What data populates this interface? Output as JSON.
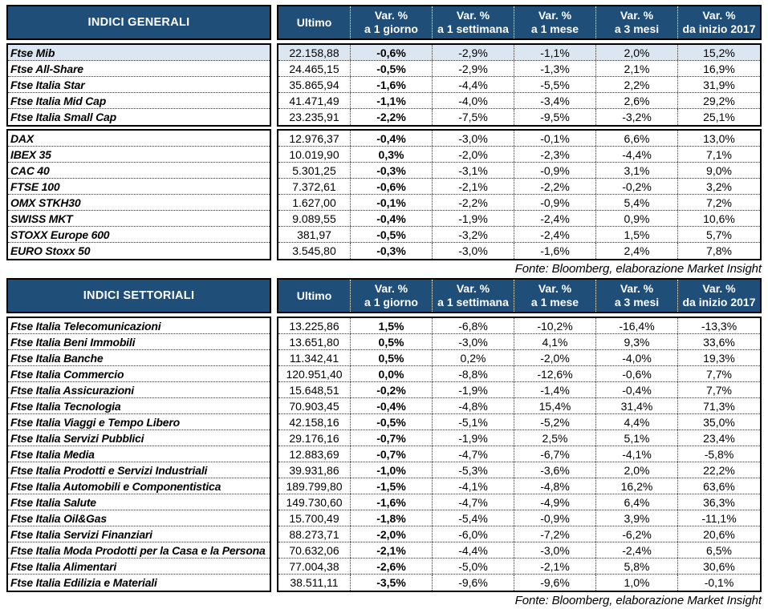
{
  "colors": {
    "header_bg": "#1F4E79",
    "header_text": "#FFFFFF",
    "highlight_row_bg": "#DCE6F1",
    "grid_border": "#000000"
  },
  "tables": [
    {
      "title": "INDICI GENERALI",
      "columns": [
        {
          "line1": "Ultimo",
          "line2": ""
        },
        {
          "line1": "Var. %",
          "line2": "a 1 giorno"
        },
        {
          "line1": "Var. %",
          "line2": "a 1 settimana"
        },
        {
          "line1": "Var. %",
          "line2": "a 1 mese"
        },
        {
          "line1": "Var. %",
          "line2": "a 3 mesi"
        },
        {
          "line1": "Var. %",
          "line2": "da inizio 2017"
        }
      ],
      "groups": [
        {
          "rows": [
            {
              "name": "Ftse Mib",
              "highlight": true,
              "values": [
                "22.158,88",
                "-0,6%",
                "-2,9%",
                "-1,1%",
                "2,0%",
                "15,2%"
              ]
            },
            {
              "name": "Ftse All-Share",
              "values": [
                "24.465,15",
                "-0,5%",
                "-2,9%",
                "-1,3%",
                "2,1%",
                "16,9%"
              ]
            },
            {
              "name": "Ftse Italia Star",
              "values": [
                "35.865,94",
                "-1,6%",
                "-4,4%",
                "-5,5%",
                "2,2%",
                "31,9%"
              ]
            },
            {
              "name": "Ftse Italia Mid Cap",
              "values": [
                "41.471,49",
                "-1,1%",
                "-4,0%",
                "-3,4%",
                "2,6%",
                "29,2%"
              ]
            },
            {
              "name": "Ftse Italia Small Cap",
              "values": [
                "23.235,91",
                "-2,2%",
                "-7,5%",
                "-9,5%",
                "-3,2%",
                "25,1%"
              ]
            }
          ]
        },
        {
          "rows": [
            {
              "name": "DAX",
              "values": [
                "12.976,37",
                "-0,4%",
                "-3,0%",
                "-0,1%",
                "6,6%",
                "13,0%"
              ]
            },
            {
              "name": "IBEX 35",
              "values": [
                "10.019,90",
                "0,3%",
                "-2,0%",
                "-2,3%",
                "-4,4%",
                "7,1%"
              ]
            },
            {
              "name": "CAC 40",
              "values": [
                "5.301,25",
                "-0,3%",
                "-3,1%",
                "-0,9%",
                "3,1%",
                "9,0%"
              ]
            },
            {
              "name": "FTSE 100",
              "values": [
                "7.372,61",
                "-0,6%",
                "-2,1%",
                "-2,2%",
                "-0,2%",
                "3,2%"
              ]
            },
            {
              "name": "OMX STKH30",
              "values": [
                "1.627,00",
                "-0,1%",
                "-2,2%",
                "-0,9%",
                "5,4%",
                "7,2%"
              ]
            },
            {
              "name": "SWISS MKT",
              "values": [
                "9.089,55",
                "-0,4%",
                "-1,9%",
                "-2,4%",
                "0,9%",
                "10,6%"
              ]
            },
            {
              "name": "STOXX Europe 600",
              "values": [
                "381,97",
                "-0,5%",
                "-3,2%",
                "-2,4%",
                "1,5%",
                "5,7%"
              ]
            },
            {
              "name": "EURO Stoxx 50",
              "values": [
                "3.545,80",
                "-0,3%",
                "-3,0%",
                "-1,6%",
                "2,4%",
                "7,8%"
              ]
            }
          ]
        }
      ],
      "source": "Fonte: Bloomberg, elaborazione Market Insight"
    },
    {
      "title": "INDICI SETTORIALI",
      "columns": [
        {
          "line1": "Ultimo",
          "line2": ""
        },
        {
          "line1": "Var. %",
          "line2": "a 1 giorno"
        },
        {
          "line1": "Var. %",
          "line2": "a 1 settimana"
        },
        {
          "line1": "Var. %",
          "line2": "a 1 mese"
        },
        {
          "line1": "Var. %",
          "line2": "a 3 mesi"
        },
        {
          "line1": "Var. %",
          "line2": "da inizio 2017"
        }
      ],
      "groups": [
        {
          "rows": [
            {
              "name": "Ftse Italia Telecomunicazioni",
              "values": [
                "13.225,86",
                "1,5%",
                "-6,8%",
                "-10,2%",
                "-16,4%",
                "-13,3%"
              ]
            },
            {
              "name": "Ftse Italia Beni Immobili",
              "values": [
                "13.651,80",
                "0,5%",
                "-3,0%",
                "4,1%",
                "9,3%",
                "33,6%"
              ]
            },
            {
              "name": "Ftse Italia Banche",
              "values": [
                "11.342,41",
                "0,5%",
                "0,2%",
                "-2,0%",
                "-4,0%",
                "19,3%"
              ]
            },
            {
              "name": "Ftse Italia Commercio",
              "values": [
                "120.951,40",
                "0,0%",
                "-8,8%",
                "-12,6%",
                "-0,6%",
                "7,7%"
              ]
            },
            {
              "name": "Ftse Italia Assicurazioni",
              "values": [
                "15.648,51",
                "-0,2%",
                "-1,9%",
                "-1,4%",
                "-0,4%",
                "7,7%"
              ]
            },
            {
              "name": "Ftse Italia Tecnologia",
              "values": [
                "70.903,45",
                "-0,4%",
                "-4,8%",
                "15,4%",
                "31,4%",
                "71,3%"
              ]
            },
            {
              "name": "Ftse Italia Viaggi e Tempo Libero",
              "values": [
                "42.158,16",
                "-0,5%",
                "-5,1%",
                "-5,2%",
                "4,4%",
                "35,0%"
              ]
            },
            {
              "name": "Ftse Italia Servizi Pubblici",
              "values": [
                "29.176,16",
                "-0,7%",
                "-1,9%",
                "2,5%",
                "5,1%",
                "23,4%"
              ]
            },
            {
              "name": "Ftse Italia Media",
              "values": [
                "12.883,69",
                "-0,7%",
                "-4,7%",
                "-6,7%",
                "-4,1%",
                "-5,8%"
              ]
            },
            {
              "name": "Ftse Italia Prodotti e Servizi Industriali",
              "values": [
                "39.931,86",
                "-1,0%",
                "-5,3%",
                "-3,6%",
                "2,0%",
                "22,2%"
              ]
            },
            {
              "name": "Ftse Italia Automobili e Componentistica",
              "values": [
                "189.799,80",
                "-1,5%",
                "-4,1%",
                "-4,8%",
                "16,2%",
                "63,6%"
              ]
            },
            {
              "name": "Ftse Italia Salute",
              "values": [
                "149.730,60",
                "-1,6%",
                "-4,7%",
                "-4,9%",
                "6,4%",
                "36,3%"
              ]
            },
            {
              "name": "Ftse Italia Oil&Gas",
              "values": [
                "15.700,49",
                "-1,8%",
                "-5,4%",
                "-0,9%",
                "3,9%",
                "-11,1%"
              ]
            },
            {
              "name": "Ftse Italia Servizi Finanziari",
              "values": [
                "88.273,71",
                "-2,0%",
                "-6,0%",
                "-7,2%",
                "-6,2%",
                "20,6%"
              ]
            },
            {
              "name": "Ftse Italia Moda Prodotti per la Casa e la Persona",
              "values": [
                "70.632,06",
                "-2,1%",
                "-4,4%",
                "-3,0%",
                "-2,4%",
                "6,5%"
              ]
            },
            {
              "name": "Ftse Italia Alimentari",
              "values": [
                "77.004,38",
                "-2,6%",
                "-5,0%",
                "-2,1%",
                "5,8%",
                "30,6%"
              ]
            },
            {
              "name": "Ftse Italia Edilizia e Materiali",
              "values": [
                "38.511,11",
                "-3,5%",
                "-9,6%",
                "-9,6%",
                "1,0%",
                "-0,1%"
              ]
            }
          ]
        }
      ],
      "source": "Fonte: Bloomberg, elaborazione Market Insight"
    }
  ]
}
